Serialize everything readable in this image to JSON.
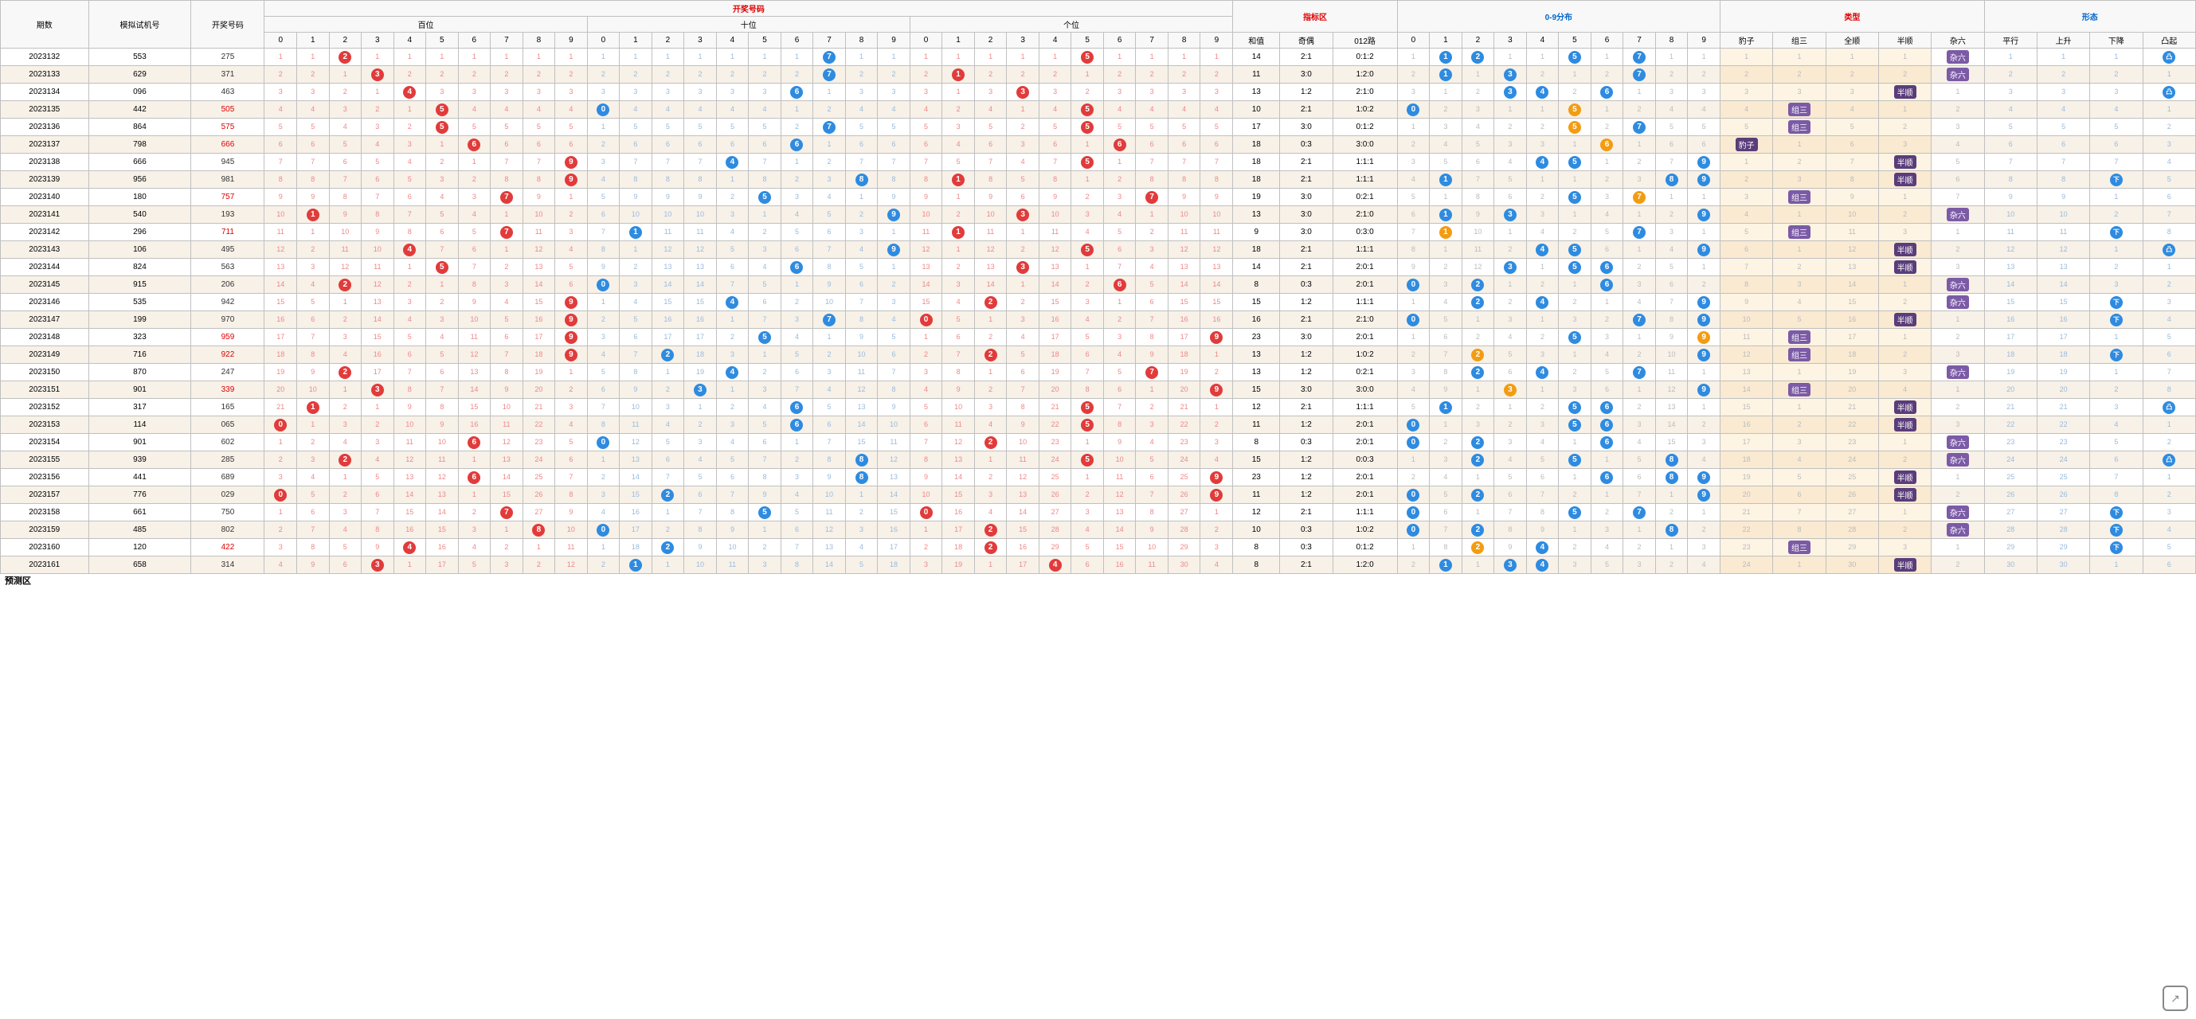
{
  "colors": {
    "ball_red": "#e13b3b",
    "ball_blue": "#2e8be0",
    "ball_orange": "#f39c12",
    "tag_purple": "#7b5aa6",
    "row_odd": "#f7f1e8",
    "row_even": "#ffffff",
    "border": "#c0c0c0",
    "miss_gray": "#bbbbbb"
  },
  "header": {
    "period": "期数",
    "sim": "模拟试机号",
    "draw": "开奖号码",
    "drawnum": "开奖号码",
    "hundred": "百位",
    "ten": "十位",
    "one": "个位",
    "indicator": "指标区",
    "dist": "0-9分布",
    "type": "类型",
    "shape": "形态",
    "hezhi": "和值",
    "qiou": "奇偶",
    "route012": "012路",
    "baozi": "豹子",
    "zusan": "组三",
    "quanshun": "全顺",
    "banshun": "半顺",
    "zaliu": "杂六",
    "pingxing": "平行",
    "shangsheng": "上升",
    "xiajiang": "下降",
    "tuqi": "凸起"
  },
  "digits": [
    "0",
    "1",
    "2",
    "3",
    "4",
    "5",
    "6",
    "7",
    "8",
    "9"
  ],
  "footer": "预测区",
  "rows": [
    {
      "period": "2023132",
      "sim": "553",
      "draw": "275",
      "drawRed": false,
      "h": 2,
      "t": 7,
      "o": 5,
      "he": 14,
      "qo": "2:1",
      "r012": "0:1:2",
      "dist": [
        null,
        "b",
        "b",
        null,
        null,
        "b",
        null,
        "b",
        null,
        null
      ],
      "distO": [],
      "type": null,
      "shape": "杂六",
      "updown": "凸起"
    },
    {
      "period": "2023133",
      "sim": "629",
      "draw": "371",
      "drawRed": false,
      "h": 3,
      "t": 7,
      "o": 1,
      "he": 11,
      "qo": "3:0",
      "r012": "1:2:0",
      "dist": [
        null,
        "b",
        null,
        "b",
        null,
        null,
        null,
        "b",
        null,
        null
      ],
      "distO": [],
      "type": null,
      "shape": "杂六",
      "updown": null
    },
    {
      "period": "2023134",
      "sim": "096",
      "draw": "463",
      "drawRed": false,
      "h": 4,
      "t": 6,
      "o": 3,
      "he": 13,
      "qo": "1:2",
      "r012": "2:1:0",
      "dist": [
        null,
        null,
        null,
        "b",
        "b",
        null,
        "b",
        null,
        null,
        null
      ],
      "distO": [],
      "type": "半顺",
      "shape": null,
      "updown": "凸起"
    },
    {
      "period": "2023135",
      "sim": "442",
      "draw": "505",
      "drawRed": true,
      "h": 5,
      "t": 0,
      "o": 5,
      "he": 10,
      "qo": "2:1",
      "r012": "1:0:2",
      "dist": [
        "b",
        null,
        null,
        null,
        null,
        "o",
        null,
        null,
        null,
        null
      ],
      "distO": [
        5
      ],
      "type": "组三",
      "shape": null,
      "updown": null
    },
    {
      "period": "2023136",
      "sim": "864",
      "draw": "575",
      "drawRed": true,
      "h": 5,
      "t": 7,
      "o": 5,
      "he": 17,
      "qo": "3:0",
      "r012": "0:1:2",
      "dist": [
        null,
        null,
        null,
        null,
        null,
        "o",
        null,
        "b",
        null,
        null
      ],
      "distO": [
        5
      ],
      "type": "组三",
      "shape": null,
      "updown": null
    },
    {
      "period": "2023137",
      "sim": "798",
      "draw": "666",
      "drawRed": true,
      "h": 6,
      "t": 6,
      "o": 6,
      "he": 18,
      "qo": "0:3",
      "r012": "3:0:0",
      "dist": [
        null,
        null,
        null,
        null,
        null,
        null,
        "o",
        null,
        null,
        null
      ],
      "distO": [
        6
      ],
      "type": "豹子",
      "shape": null,
      "updown": null
    },
    {
      "period": "2023138",
      "sim": "666",
      "draw": "945",
      "drawRed": false,
      "h": 9,
      "t": 4,
      "o": 5,
      "he": 18,
      "qo": "2:1",
      "r012": "1:1:1",
      "dist": [
        null,
        null,
        null,
        null,
        "b",
        "b",
        null,
        null,
        null,
        "b"
      ],
      "distO": [],
      "type": "半顺",
      "shape": null,
      "updown": null
    },
    {
      "period": "2023139",
      "sim": "956",
      "draw": "981",
      "drawRed": false,
      "h": 9,
      "t": 8,
      "o": 1,
      "he": 18,
      "qo": "2:1",
      "r012": "1:1:1",
      "dist": [
        null,
        "b",
        null,
        null,
        null,
        null,
        null,
        null,
        "b",
        "b"
      ],
      "distO": [],
      "type": "半顺",
      "shape": null,
      "updown": "下降"
    },
    {
      "period": "2023140",
      "sim": "180",
      "draw": "757",
      "drawRed": true,
      "h": 7,
      "t": 5,
      "o": 7,
      "he": 19,
      "qo": "3:0",
      "r012": "0:2:1",
      "dist": [
        null,
        null,
        null,
        null,
        null,
        "b",
        null,
        "o",
        null,
        null
      ],
      "distO": [
        7
      ],
      "type": "组三",
      "shape": null,
      "updown": null
    },
    {
      "period": "2023141",
      "sim": "540",
      "draw": "193",
      "drawRed": false,
      "h": 1,
      "t": 9,
      "o": 3,
      "he": 13,
      "qo": "3:0",
      "r012": "2:1:0",
      "dist": [
        null,
        "b",
        null,
        "b",
        null,
        null,
        null,
        null,
        null,
        "b"
      ],
      "distO": [],
      "type": null,
      "shape": "杂六",
      "updown": null
    },
    {
      "period": "2023142",
      "sim": "296",
      "draw": "711",
      "drawRed": true,
      "h": 7,
      "t": 1,
      "o": 1,
      "he": 9,
      "qo": "3:0",
      "r012": "0:3:0",
      "dist": [
        null,
        "o",
        null,
        null,
        null,
        null,
        null,
        "b",
        null,
        null
      ],
      "distO": [
        1
      ],
      "type": "组三",
      "shape": null,
      "updown": "下降"
    },
    {
      "period": "2023143",
      "sim": "106",
      "draw": "495",
      "drawRed": false,
      "h": 4,
      "t": 9,
      "o": 5,
      "he": 18,
      "qo": "2:1",
      "r012": "1:1:1",
      "dist": [
        null,
        null,
        null,
        null,
        "b",
        "b",
        null,
        null,
        null,
        "b"
      ],
      "distO": [],
      "type": "半顺",
      "shape": null,
      "updown": "凸起"
    },
    {
      "period": "2023144",
      "sim": "824",
      "draw": "563",
      "drawRed": false,
      "h": 5,
      "t": 6,
      "o": 3,
      "he": 14,
      "qo": "2:1",
      "r012": "2:0:1",
      "dist": [
        null,
        null,
        null,
        "b",
        null,
        "b",
        "b",
        null,
        null,
        null
      ],
      "distO": [],
      "type": "半顺",
      "shape": null,
      "updown": null
    },
    {
      "period": "2023145",
      "sim": "915",
      "draw": "206",
      "drawRed": false,
      "h": 2,
      "t": 0,
      "o": 6,
      "he": 8,
      "qo": "0:3",
      "r012": "2:0:1",
      "dist": [
        "b",
        null,
        "b",
        null,
        null,
        null,
        "b",
        null,
        null,
        null
      ],
      "distO": [],
      "type": null,
      "shape": "杂六",
      "updown": null
    },
    {
      "period": "2023146",
      "sim": "535",
      "draw": "942",
      "drawRed": false,
      "h": 9,
      "t": 4,
      "o": 2,
      "he": 15,
      "qo": "1:2",
      "r012": "1:1:1",
      "dist": [
        null,
        null,
        "b",
        null,
        "b",
        null,
        null,
        null,
        null,
        "b"
      ],
      "distO": [],
      "type": null,
      "shape": "杂六",
      "updown": "下降"
    },
    {
      "period": "2023147",
      "sim": "199",
      "draw": "970",
      "drawRed": false,
      "h": 9,
      "t": 7,
      "o": 0,
      "he": 16,
      "qo": "2:1",
      "r012": "2:1:0",
      "dist": [
        "b",
        null,
        null,
        null,
        null,
        null,
        null,
        "b",
        null,
        "b"
      ],
      "distO": [],
      "type": "半顺",
      "shape": null,
      "updown": "下降"
    },
    {
      "period": "2023148",
      "sim": "323",
      "draw": "959",
      "drawRed": true,
      "h": 9,
      "t": 5,
      "o": 9,
      "he": 23,
      "qo": "3:0",
      "r012": "2:0:1",
      "dist": [
        null,
        null,
        null,
        null,
        null,
        "b",
        null,
        null,
        null,
        "o"
      ],
      "distO": [
        9
      ],
      "type": "组三",
      "shape": null,
      "updown": null
    },
    {
      "period": "2023149",
      "sim": "716",
      "draw": "922",
      "drawRed": true,
      "h": 9,
      "t": 2,
      "o": 2,
      "he": 13,
      "qo": "1:2",
      "r012": "1:0:2",
      "dist": [
        null,
        null,
        "o",
        null,
        null,
        null,
        null,
        null,
        null,
        "b"
      ],
      "distO": [
        2
      ],
      "type": "组三",
      "shape": null,
      "updown": "下降"
    },
    {
      "period": "2023150",
      "sim": "870",
      "draw": "247",
      "drawRed": false,
      "h": 2,
      "t": 4,
      "o": 7,
      "he": 13,
      "qo": "1:2",
      "r012": "0:2:1",
      "dist": [
        null,
        null,
        "b",
        null,
        "b",
        null,
        null,
        "b",
        null,
        null
      ],
      "distO": [],
      "type": null,
      "shape": "杂六",
      "updown": null
    },
    {
      "period": "2023151",
      "sim": "901",
      "draw": "339",
      "drawRed": true,
      "h": 3,
      "t": 3,
      "o": 9,
      "he": 15,
      "qo": "3:0",
      "r012": "3:0:0",
      "dist": [
        null,
        null,
        null,
        "o",
        null,
        null,
        null,
        null,
        null,
        "b"
      ],
      "distO": [
        3
      ],
      "type": "组三",
      "shape": null,
      "updown": null
    },
    {
      "period": "2023152",
      "sim": "317",
      "draw": "165",
      "drawRed": false,
      "h": 1,
      "t": 6,
      "o": 5,
      "he": 12,
      "qo": "2:1",
      "r012": "1:1:1",
      "dist": [
        null,
        "b",
        null,
        null,
        null,
        "b",
        "b",
        null,
        null,
        null
      ],
      "distO": [],
      "type": "半顺",
      "shape": null,
      "updown": "凸起"
    },
    {
      "period": "2023153",
      "sim": "114",
      "draw": "065",
      "drawRed": false,
      "h": 0,
      "t": 6,
      "o": 5,
      "he": 11,
      "qo": "1:2",
      "r012": "2:0:1",
      "dist": [
        "b",
        null,
        null,
        null,
        null,
        "b",
        "b",
        null,
        null,
        null
      ],
      "distO": [],
      "type": "半顺",
      "shape": null,
      "updown": null
    },
    {
      "period": "2023154",
      "sim": "901",
      "draw": "602",
      "drawRed": false,
      "h": 6,
      "t": 0,
      "o": 2,
      "he": 8,
      "qo": "0:3",
      "r012": "2:0:1",
      "dist": [
        "b",
        null,
        "b",
        null,
        null,
        null,
        "b",
        null,
        null,
        null
      ],
      "distO": [],
      "type": null,
      "shape": "杂六",
      "updown": null
    },
    {
      "period": "2023155",
      "sim": "939",
      "draw": "285",
      "drawRed": false,
      "h": 2,
      "t": 8,
      "o": 5,
      "he": 15,
      "qo": "1:2",
      "r012": "0:0:3",
      "dist": [
        null,
        null,
        "b",
        null,
        null,
        "b",
        null,
        null,
        "b",
        null
      ],
      "distO": [],
      "type": null,
      "shape": "杂六",
      "updown": "凸起"
    },
    {
      "period": "2023156",
      "sim": "441",
      "draw": "689",
      "drawRed": false,
      "h": 6,
      "t": 8,
      "o": 9,
      "he": 23,
      "qo": "1:2",
      "r012": "2:0:1",
      "dist": [
        null,
        null,
        null,
        null,
        null,
        null,
        "b",
        null,
        "b",
        "b"
      ],
      "distO": [],
      "type": "半顺",
      "shape": null,
      "updown": null
    },
    {
      "period": "2023157",
      "sim": "776",
      "draw": "029",
      "drawRed": false,
      "h": 0,
      "t": 2,
      "o": 9,
      "he": 11,
      "qo": "1:2",
      "r012": "2:0:1",
      "dist": [
        "b",
        null,
        "b",
        null,
        null,
        null,
        null,
        null,
        null,
        "b"
      ],
      "distO": [],
      "type": "半顺",
      "shape": null,
      "updown": null
    },
    {
      "period": "2023158",
      "sim": "661",
      "draw": "750",
      "drawRed": false,
      "h": 7,
      "t": 5,
      "o": 0,
      "he": 12,
      "qo": "2:1",
      "r012": "1:1:1",
      "dist": [
        "b",
        null,
        null,
        null,
        null,
        "b",
        null,
        "b",
        null,
        null
      ],
      "distO": [],
      "type": null,
      "shape": "杂六",
      "updown": "下降"
    },
    {
      "period": "2023159",
      "sim": "485",
      "draw": "802",
      "drawRed": false,
      "h": 8,
      "t": 0,
      "o": 2,
      "he": 10,
      "qo": "0:3",
      "r012": "1:0:2",
      "dist": [
        "b",
        null,
        "b",
        null,
        null,
        null,
        null,
        null,
        "b",
        null
      ],
      "distO": [],
      "type": null,
      "shape": "杂六",
      "updown": "下降"
    },
    {
      "period": "2023160",
      "sim": "120",
      "draw": "422",
      "drawRed": true,
      "h": 4,
      "t": 2,
      "o": 2,
      "he": 8,
      "qo": "0:3",
      "r012": "0:1:2",
      "dist": [
        null,
        null,
        "o",
        null,
        "b",
        null,
        null,
        null,
        null,
        null
      ],
      "distO": [
        2
      ],
      "type": "组三",
      "shape": null,
      "updown": "下降"
    },
    {
      "period": "2023161",
      "sim": "658",
      "draw": "314",
      "drawRed": false,
      "h": 3,
      "t": 1,
      "o": 4,
      "he": 8,
      "qo": "2:1",
      "r012": "1:2:0",
      "dist": [
        null,
        "b",
        null,
        "b",
        "b",
        null,
        null,
        null,
        null,
        null
      ],
      "distO": [],
      "type": "半顺",
      "shape": null,
      "updown": null
    }
  ],
  "column_widths": {
    "period": 60,
    "sim": 70,
    "draw": 50,
    "digit": 22,
    "he": 32,
    "qo": 36,
    "r012": 44,
    "dist": 22,
    "type": 36,
    "shape": 36
  }
}
